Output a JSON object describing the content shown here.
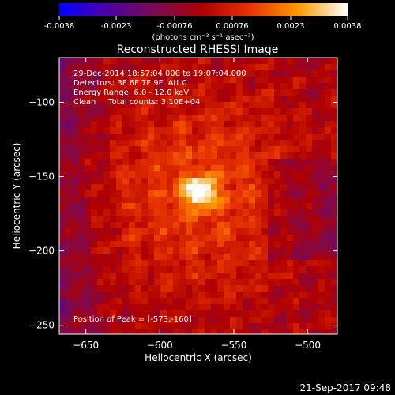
{
  "chart_data": {
    "type": "heatmap",
    "title": "Reconstructed RHESSI Image",
    "xlabel": "Heliocentric X (arcsec)",
    "ylabel": "Heliocentric Y (arcsec)",
    "xlim": [
      -668,
      -480
    ],
    "ylim": [
      -256,
      -70
    ],
    "xticks": [
      -650,
      -600,
      -550,
      -500
    ],
    "yticks": [
      -100,
      -150,
      -200,
      -250
    ],
    "colorbar": {
      "min": -0.0038,
      "max": 0.0038,
      "ticks": [
        -0.0038,
        -0.0023,
        -0.00076,
        0.00076,
        0.0023,
        0.0038
      ],
      "tick_labels": [
        "-0.0038",
        "-0.0023",
        "-0.00076",
        "0.00076",
        "0.0023",
        "0.0038"
      ],
      "units_label": "(photons cm⁻² s⁻¹ asec⁻²)",
      "colors": [
        "#0000ff",
        "#4b00aa",
        "#7a0a55",
        "#b00000",
        "#e83300",
        "#ff9900",
        "#ffffff"
      ]
    },
    "peak": {
      "x": -573,
      "y": -160,
      "value": 0.0038
    },
    "info_lines": [
      "29-Dec-2014 18:57:04.000 to 19:07:04.000",
      "Detectors: 3F 6F 7F 9F, Att 0",
      "Energy Range: 6.0 - 12.0 keV",
      "Clean     Total counts: 3.10E+04"
    ],
    "peak_label": "Position of Peak = [-573,-160]",
    "grid": false
  },
  "timestamp": "21-Sep-2017 09:48"
}
